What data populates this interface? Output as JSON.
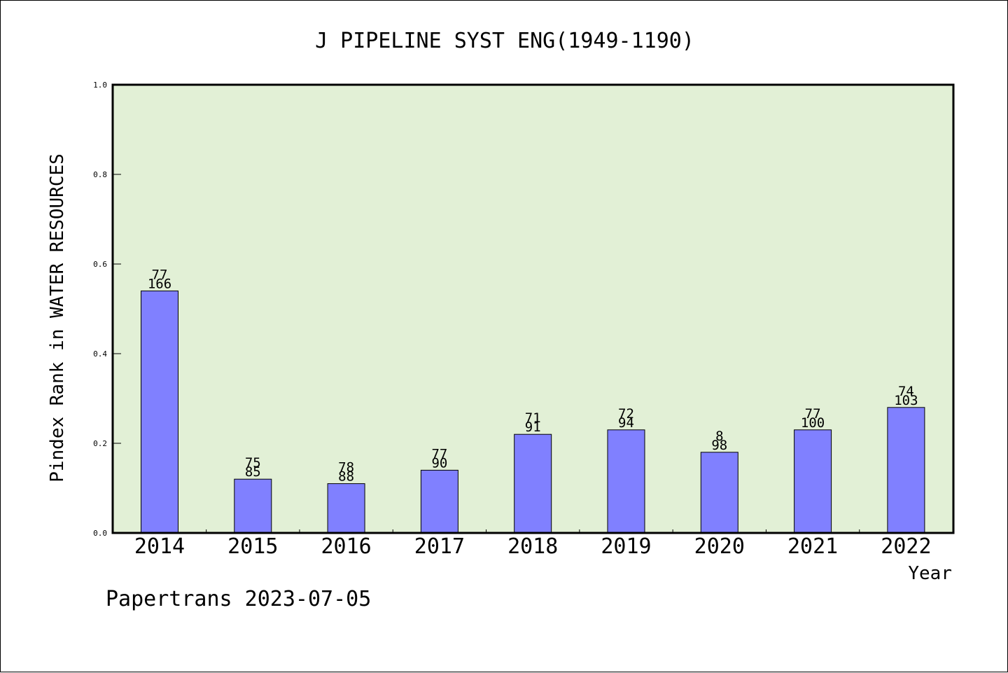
{
  "chart_data": {
    "type": "bar",
    "title": "J PIPELINE SYST ENG(1949-1190)",
    "xlabel": "Year",
    "ylabel": "Pindex Rank in WATER RESOURCES",
    "footer": "Papertrans 2023-07-05",
    "ylim": [
      0.0,
      1.0
    ],
    "yticks": [
      "0.0",
      "0.2",
      "0.4",
      "0.6",
      "0.8",
      "1.0"
    ],
    "grid": false,
    "categories": [
      "2014",
      "2015",
      "2016",
      "2017",
      "2018",
      "2019",
      "2020",
      "2021",
      "2022"
    ],
    "values": [
      0.54,
      0.12,
      0.11,
      0.14,
      0.22,
      0.23,
      0.18,
      0.23,
      0.28
    ],
    "labels_top": [
      "77",
      "75",
      "78",
      "77",
      "71",
      "72",
      "8",
      "77",
      "74"
    ],
    "labels_bottom": [
      "166",
      "85",
      "88",
      "90",
      "91",
      "94",
      "98",
      "100",
      "103"
    ],
    "colors": {
      "bar": "#8080ff",
      "plot_bg": "#e2f0d6",
      "axis": "#000000"
    }
  }
}
